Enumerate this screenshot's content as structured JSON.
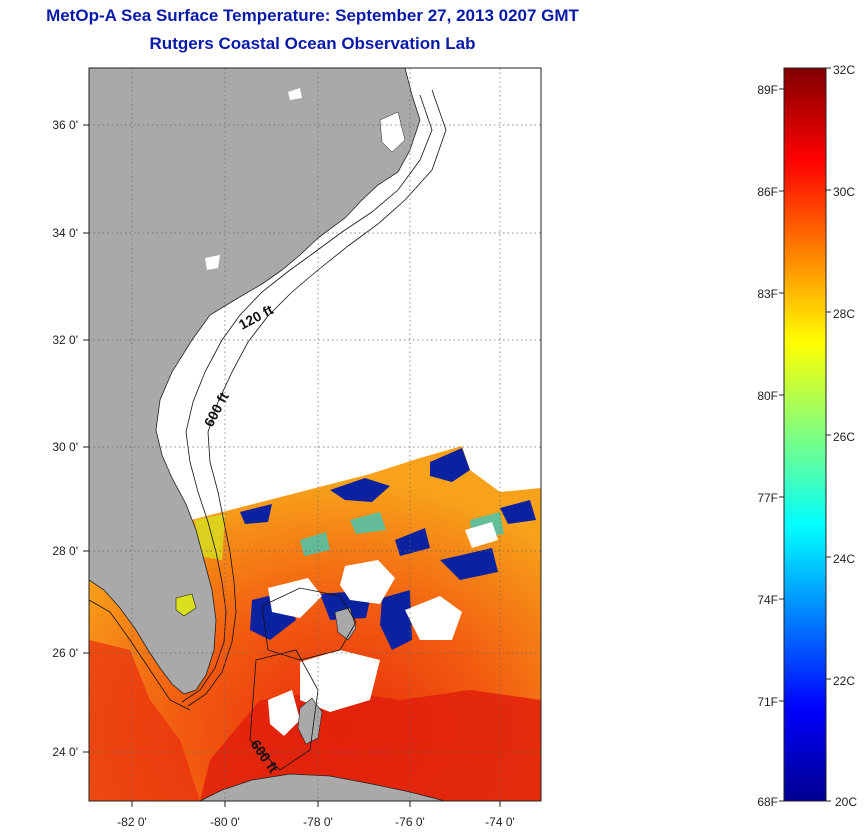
{
  "title": "MetOp-A Sea Surface Temperature:  September 27, 2013 0207 GMT",
  "subtitle": "Rutgers Coastal Ocean Observation Lab",
  "map": {
    "lon_ticks": [
      "-82 0'",
      "-80 0'",
      "-78 0'",
      "-76 0'",
      "-74 0'"
    ],
    "lat_ticks": [
      "36 0'",
      "34 0'",
      "32 0'",
      "30 0'",
      "28 0'",
      "26 0'",
      "24 0'"
    ],
    "depth_labels": [
      "120 ft",
      "600 ft",
      "600 ft"
    ],
    "colors": {
      "land": "#a9a9a9",
      "no_data": "#ffffff",
      "warm": "#ef5a12",
      "cool_clouds": "#0a22a0"
    }
  },
  "colorbar": {
    "range_c": [
      20,
      32
    ],
    "celsius_labels": [
      "32C",
      "30C",
      "28C",
      "26C",
      "24C",
      "22C",
      "20C"
    ],
    "fahrenheit_labels": [
      "89F",
      "86F",
      "83F",
      "80F",
      "77F",
      "74F",
      "71F",
      "68F"
    ],
    "colormap": "jet"
  }
}
